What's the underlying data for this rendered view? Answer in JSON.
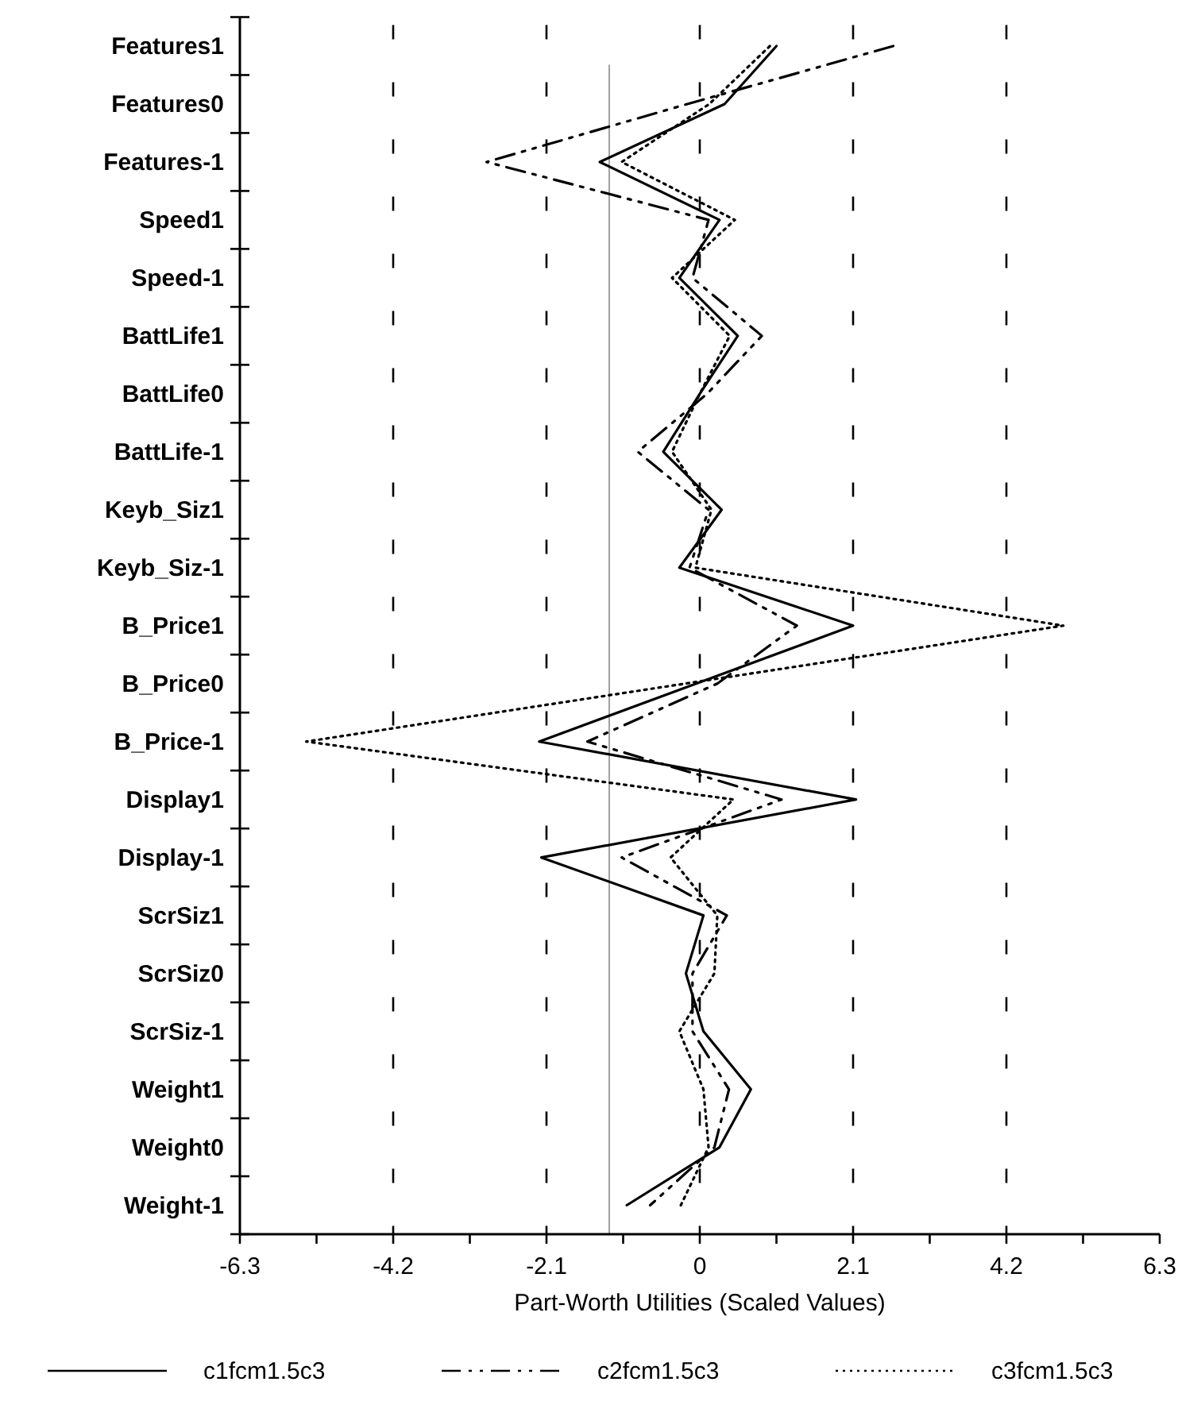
{
  "chart_data": {
    "type": "line",
    "orientation": "horizontal",
    "xlabel": "Part-Worth Utilities (Scaled Values)",
    "categories": [
      "Features1",
      "Features0",
      "Features-1",
      "Speed1",
      "Speed-1",
      "BattLife1",
      "BattLife0",
      "BattLife-1",
      "Keyb_Siz1",
      "Keyb_Siz-1",
      "B_Price1",
      "B_Price0",
      "B_Price-1",
      "Display1",
      "Display-1",
      "ScrSiz1",
      "ScrSiz0",
      "ScrSiz-1",
      "Weight1",
      "Weight0",
      "Weight-1"
    ],
    "xlim": [
      -6.3,
      6.3
    ],
    "xticks": [
      -6.3,
      {
        "value": -5.25,
        "label": null
      },
      -4.2,
      {
        "value": -3.15,
        "label": null
      },
      -2.1,
      {
        "value": -1.05,
        "label": null
      },
      0,
      {
        "value": 1.05,
        "label": null
      },
      2.1,
      {
        "value": 3.15,
        "label": null
      },
      4.2,
      {
        "value": 5.25,
        "label": null
      },
      6.3
    ],
    "grid": "x",
    "legend": "bottom",
    "marker": "none",
    "ref_lines": [
      {
        "axis": "x",
        "value": -1.24,
        "color": "#a0a0a0",
        "line_style": "solid"
      }
    ],
    "series": [
      {
        "name": "c1fcm1.5c3",
        "color": "#000000",
        "line_style": "solid",
        "values": [
          1.05,
          0.34,
          -1.37,
          0.27,
          -0.28,
          0.52,
          0,
          -0.5,
          0.3,
          -0.28,
          2.1,
          -0.05,
          -2.2,
          2.14,
          -2.17,
          0.05,
          -0.19,
          0.05,
          0.7,
          0.27,
          -1.0
        ]
      },
      {
        "name": "c2fcm1.5c3",
        "color": "#000000",
        "line_style": "dashdot",
        "values": [
          2.65,
          -0.17,
          -2.92,
          0.12,
          -0.1,
          0.85,
          0.1,
          -0.85,
          0.12,
          -0.14,
          1.33,
          0.24,
          -1.54,
          1.12,
          -1.07,
          0.37,
          -0.1,
          -0.1,
          0.4,
          0.2,
          -0.68
        ]
      },
      {
        "name": "c3fcm1.5c3",
        "color": "#000000",
        "line_style": "dotted",
        "values": [
          0.96,
          0.13,
          -1.07,
          0.48,
          -0.38,
          0.41,
          0,
          -0.38,
          0.16,
          -0.06,
          4.98,
          -0.2,
          -5.39,
          0.46,
          -0.4,
          0.24,
          0.2,
          -0.28,
          0.05,
          0.12,
          -0.26
        ]
      }
    ]
  }
}
